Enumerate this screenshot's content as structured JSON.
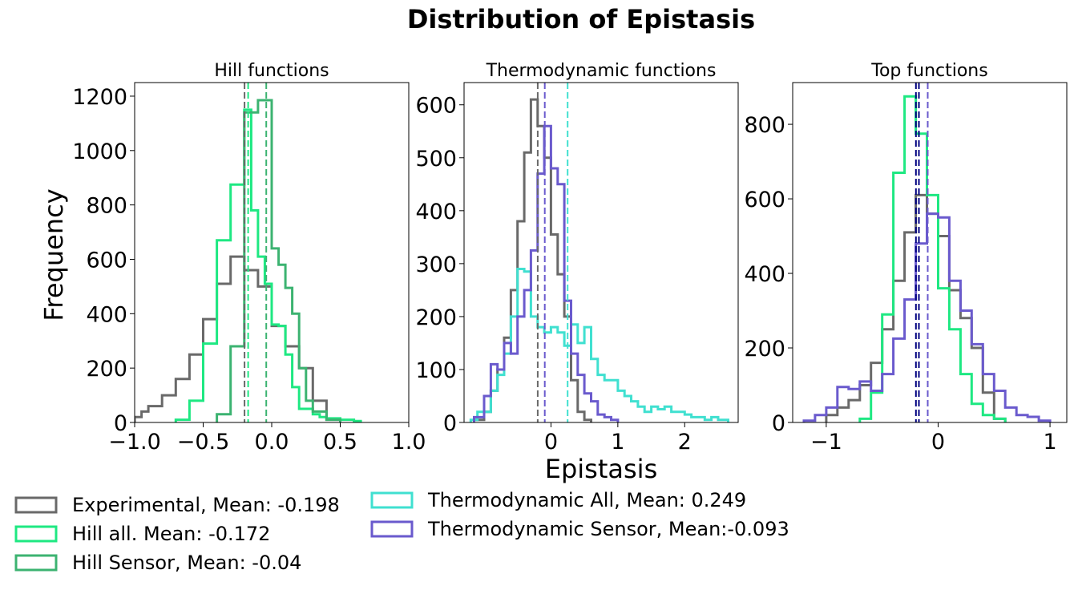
{
  "figure": {
    "title": "Distribution of Epistasis",
    "ylabel": "Frequency",
    "xlabel": "Epistasis"
  },
  "legend": {
    "placement": "bottom",
    "entries": [
      {
        "label": "Experimental, Mean: -0.198",
        "color": "#696969"
      },
      {
        "label": "Hill all. Mean: -0.172",
        "color": "#1ee882"
      },
      {
        "label": "Hill Sensor, Mean: -0.04",
        "color": "#3cb371"
      },
      {
        "label": "Thermodynamic All, Mean: 0.249",
        "color": "#40e0d0"
      },
      {
        "label": "Thermodynamic Sensor, Mean:-0.093",
        "color": "#6a5acd"
      }
    ]
  },
  "chart_data": [
    {
      "type": "histogram",
      "title": "Hill functions",
      "xlim": [
        -1.0,
        1.0
      ],
      "ylim": [
        0,
        1250
      ],
      "xticks": [
        -1.0,
        -0.5,
        0.0,
        0.5,
        1.0
      ],
      "xtick_labels": [
        "−1.0",
        "−0.5",
        "0.0",
        "0.5",
        "1.0"
      ],
      "yticks": [
        0,
        200,
        400,
        600,
        800,
        1000,
        1200
      ],
      "ytick_labels": [
        "0",
        "200",
        "400",
        "600",
        "800",
        "1000",
        "1200"
      ],
      "grid": false,
      "series": [
        {
          "key": "experimental",
          "color": "#696969",
          "edges": [
            -1.0,
            -0.95,
            -0.9,
            -0.8,
            -0.7,
            -0.6,
            -0.5,
            -0.4,
            -0.3,
            -0.2,
            -0.1,
            0.0,
            0.1,
            0.2,
            0.3,
            0.4,
            0.5
          ],
          "counts": [
            20,
            40,
            60,
            100,
            160,
            250,
            380,
            510,
            610,
            560,
            500,
            355,
            280,
            200,
            80,
            10
          ],
          "mean": -0.198
        },
        {
          "key": "hill_all",
          "color": "#1ee882",
          "edges": [
            -0.7,
            -0.6,
            -0.5,
            -0.4,
            -0.3,
            -0.2,
            -0.15,
            -0.1,
            -0.05,
            0.0,
            0.05,
            0.1,
            0.15,
            0.2,
            0.25,
            0.3,
            0.35,
            0.4,
            0.5,
            0.6,
            0.65
          ],
          "counts": [
            10,
            80,
            290,
            670,
            875,
            1150,
            780,
            610,
            510,
            360,
            355,
            250,
            130,
            50,
            50,
            30,
            20,
            15,
            10,
            5
          ],
          "mean": -0.172
        },
        {
          "key": "hill_sensor",
          "color": "#3cb371",
          "edges": [
            -0.4,
            -0.3,
            -0.2,
            -0.1,
            0.0,
            0.05,
            0.1,
            0.15,
            0.2,
            0.25,
            0.3,
            0.4,
            0.5
          ],
          "counts": [
            30,
            280,
            1140,
            1185,
            640,
            580,
            495,
            400,
            200,
            80,
            40,
            10
          ],
          "mean": -0.04
        }
      ]
    },
    {
      "type": "histogram",
      "title": "Thermodynamic functions",
      "xlim": [
        -1.3,
        2.8
      ],
      "ylim": [
        0,
        642
      ],
      "xticks": [
        0,
        1,
        2
      ],
      "xtick_labels": [
        "0",
        "1",
        "2"
      ],
      "yticks": [
        0,
        100,
        200,
        300,
        400,
        500,
        600
      ],
      "ytick_labels": [
        "0",
        "100",
        "200",
        "300",
        "400",
        "500",
        "600"
      ],
      "grid": false,
      "series": [
        {
          "key": "experimental",
          "color": "#696969",
          "edges": [
            -1.15,
            -1.0,
            -0.9,
            -0.8,
            -0.7,
            -0.6,
            -0.5,
            -0.4,
            -0.3,
            -0.2,
            -0.1,
            0.0,
            0.1,
            0.2,
            0.3,
            0.4,
            0.5,
            0.6
          ],
          "counts": [
            5,
            20,
            60,
            100,
            160,
            250,
            380,
            510,
            610,
            560,
            500,
            355,
            280,
            200,
            80,
            20,
            5
          ],
          "mean": -0.198
        },
        {
          "key": "thermo_all",
          "color": "#40e0d0",
          "edges": [
            -1.2,
            -1.1,
            -0.9,
            -0.8,
            -0.7,
            -0.6,
            -0.5,
            -0.4,
            -0.3,
            -0.2,
            -0.1,
            0.0,
            0.1,
            0.2,
            0.3,
            0.4,
            0.5,
            0.6,
            0.7,
            0.8,
            0.9,
            1.0,
            1.1,
            1.2,
            1.3,
            1.4,
            1.5,
            1.6,
            1.7,
            1.8,
            1.9,
            2.0,
            2.1,
            2.2,
            2.3,
            2.4,
            2.5,
            2.65
          ],
          "counts": [
            5,
            20,
            60,
            90,
            130,
            200,
            290,
            285,
            200,
            180,
            170,
            180,
            170,
            145,
            185,
            150,
            180,
            120,
            90,
            80,
            80,
            60,
            50,
            40,
            30,
            20,
            30,
            25,
            30,
            20,
            20,
            15,
            10,
            10,
            5,
            10,
            5
          ],
          "mean": 0.249
        },
        {
          "key": "thermo_sensor",
          "color": "#6a5acd",
          "edges": [
            -1.15,
            -1.0,
            -0.9,
            -0.8,
            -0.7,
            -0.6,
            -0.5,
            -0.4,
            -0.3,
            -0.2,
            -0.1,
            0.0,
            0.1,
            0.2,
            0.3,
            0.4,
            0.5,
            0.6,
            0.7,
            0.8,
            0.9,
            1.0
          ],
          "counts": [
            10,
            50,
            110,
            100,
            150,
            130,
            200,
            250,
            325,
            470,
            560,
            480,
            450,
            230,
            130,
            90,
            55,
            40,
            15,
            10,
            5
          ],
          "mean": -0.093
        }
      ]
    },
    {
      "type": "histogram",
      "title": "Top functions",
      "xlim": [
        -1.3,
        1.15
      ],
      "ylim": [
        0,
        912
      ],
      "xticks": [
        -1,
        0,
        1
      ],
      "xtick_labels": [
        "−1",
        "0",
        "1"
      ],
      "yticks": [
        0,
        200,
        400,
        600,
        800
      ],
      "ytick_labels": [
        "0",
        "200",
        "400",
        "600",
        "800"
      ],
      "grid": false,
      "series": [
        {
          "key": "experimental",
          "color": "#696969",
          "edges": [
            -1.0,
            -0.9,
            -0.8,
            -0.7,
            -0.6,
            -0.5,
            -0.4,
            -0.3,
            -0.2,
            -0.1,
            0.0,
            0.1,
            0.2,
            0.3,
            0.4,
            0.5,
            0.6
          ],
          "counts": [
            20,
            40,
            60,
            100,
            160,
            250,
            380,
            510,
            610,
            560,
            500,
            355,
            280,
            200,
            80,
            10
          ],
          "mean": -0.198
        },
        {
          "key": "hill_all",
          "color": "#1ee882",
          "edges": [
            -0.7,
            -0.6,
            -0.5,
            -0.4,
            -0.3,
            -0.2,
            -0.1,
            0.0,
            0.1,
            0.2,
            0.3,
            0.4,
            0.5,
            0.6
          ],
          "counts": [
            10,
            80,
            290,
            670,
            875,
            775,
            610,
            360,
            250,
            130,
            50,
            20,
            10
          ],
          "mean": -0.172
        },
        {
          "key": "thermo_sensor",
          "color": "#6a5acd",
          "edges": [
            -1.2,
            -1.1,
            -1.0,
            -0.9,
            -0.8,
            -0.7,
            -0.6,
            -0.5,
            -0.4,
            -0.3,
            -0.2,
            -0.1,
            0.0,
            0.1,
            0.2,
            0.3,
            0.4,
            0.5,
            0.6,
            0.7,
            0.8,
            0.9,
            1.0
          ],
          "counts": [
            5,
            20,
            40,
            95,
            90,
            110,
            85,
            130,
            225,
            330,
            480,
            560,
            550,
            380,
            300,
            210,
            130,
            85,
            40,
            20,
            15,
            5
          ],
          "mean": -0.093
        }
      ],
      "vlines": [
        {
          "x": -0.198,
          "color": "#000080"
        },
        {
          "x": -0.172,
          "color": "#000080"
        },
        {
          "x": -0.093,
          "color": "#6a5acd"
        }
      ]
    }
  ]
}
